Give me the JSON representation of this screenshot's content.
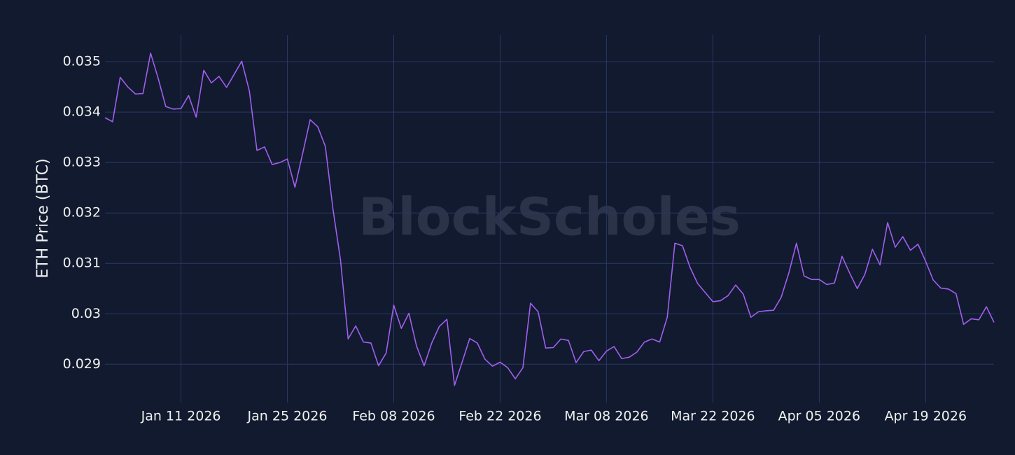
{
  "chart_data": {
    "type": "line",
    "y_label": "ETH Price (BTC)",
    "watermark": "BlockScholes",
    "x": [
      "2026-01-01",
      "2026-01-02",
      "2026-01-03",
      "2026-01-04",
      "2026-01-05",
      "2026-01-06",
      "2026-01-07",
      "2026-01-08",
      "2026-01-09",
      "2026-01-10",
      "2026-01-11",
      "2026-01-12",
      "2026-01-13",
      "2026-01-14",
      "2026-01-15",
      "2026-01-16",
      "2026-01-17",
      "2026-01-18",
      "2026-01-19",
      "2026-01-20",
      "2026-01-21",
      "2026-01-22",
      "2026-01-23",
      "2026-01-24",
      "2026-01-25",
      "2026-01-26",
      "2026-01-27",
      "2026-01-28",
      "2026-01-29",
      "2026-01-30",
      "2026-01-31",
      "2026-02-01",
      "2026-02-02",
      "2026-02-03",
      "2026-02-04",
      "2026-02-05",
      "2026-02-06",
      "2026-02-07",
      "2026-02-08",
      "2026-02-09",
      "2026-02-10",
      "2026-02-11",
      "2026-02-12",
      "2026-02-13",
      "2026-02-14",
      "2026-02-15",
      "2026-02-16",
      "2026-02-17",
      "2026-02-18",
      "2026-02-19",
      "2026-02-20",
      "2026-02-21",
      "2026-02-22",
      "2026-02-23",
      "2026-02-24",
      "2026-02-25",
      "2026-02-26",
      "2026-02-27",
      "2026-02-28",
      "2026-03-01",
      "2026-03-02",
      "2026-03-03",
      "2026-03-04",
      "2026-03-05",
      "2026-03-06",
      "2026-03-07",
      "2026-03-08",
      "2026-03-09",
      "2026-03-10",
      "2026-03-11",
      "2026-03-12",
      "2026-03-13",
      "2026-03-14",
      "2026-03-15",
      "2026-03-16",
      "2026-03-17",
      "2026-03-18",
      "2026-03-19",
      "2026-03-20",
      "2026-03-21",
      "2026-03-22",
      "2026-03-23",
      "2026-03-24",
      "2026-03-25",
      "2026-03-26",
      "2026-03-27",
      "2026-03-28",
      "2026-03-29",
      "2026-03-30",
      "2026-03-31",
      "2026-04-01",
      "2026-04-02",
      "2026-04-03",
      "2026-04-04",
      "2026-04-05",
      "2026-04-06",
      "2026-04-07",
      "2026-04-08",
      "2026-04-09",
      "2026-04-10",
      "2026-04-11",
      "2026-04-12",
      "2026-04-13",
      "2026-04-14",
      "2026-04-15",
      "2026-04-16",
      "2026-04-17",
      "2026-04-18",
      "2026-04-19",
      "2026-04-20",
      "2026-04-21",
      "2026-04-22",
      "2026-04-23",
      "2026-04-24",
      "2026-04-25",
      "2026-04-26",
      "2026-04-27",
      "2026-04-28"
    ],
    "series": [
      {
        "color": "#a15ef0",
        "values": [
          0.03389,
          0.03381,
          0.03469,
          0.0345,
          0.03436,
          0.03437,
          0.03517,
          0.03467,
          0.03411,
          0.03406,
          0.03407,
          0.03433,
          0.0339,
          0.03483,
          0.03458,
          0.03471,
          0.03449,
          0.03475,
          0.03501,
          0.03442,
          0.03324,
          0.03331,
          0.03296,
          0.033,
          0.03307,
          0.03251,
          0.03317,
          0.03385,
          0.03371,
          0.03332,
          0.03208,
          0.03106,
          0.0295,
          0.02976,
          0.02944,
          0.02942,
          0.02897,
          0.02922,
          0.03017,
          0.02971,
          0.03001,
          0.02936,
          0.02897,
          0.02942,
          0.02975,
          0.02989,
          0.02858,
          0.02904,
          0.02951,
          0.02942,
          0.0291,
          0.02896,
          0.02904,
          0.02893,
          0.02871,
          0.02893,
          0.03021,
          0.03004,
          0.02932,
          0.02933,
          0.0295,
          0.02947,
          0.02903,
          0.02925,
          0.02928,
          0.02907,
          0.02926,
          0.02935,
          0.02911,
          0.02914,
          0.02924,
          0.02944,
          0.0295,
          0.02944,
          0.02993,
          0.0314,
          0.03135,
          0.03092,
          0.0306,
          0.03042,
          0.03024,
          0.03026,
          0.03036,
          0.03057,
          0.03039,
          0.02993,
          0.03004,
          0.03006,
          0.03007,
          0.03033,
          0.03081,
          0.0314,
          0.03075,
          0.03068,
          0.03068,
          0.03058,
          0.03061,
          0.03114,
          0.03081,
          0.0305,
          0.03078,
          0.03128,
          0.03097,
          0.03181,
          0.03132,
          0.03153,
          0.03126,
          0.03138,
          0.03104,
          0.03067,
          0.03051,
          0.03049,
          0.0304,
          0.02979,
          0.0299,
          0.02988,
          0.03014,
          0.02983
        ]
      }
    ],
    "xlim": [
      "2026-01-01",
      "2026-04-28"
    ],
    "xticks": [
      {
        "value": "2026-01-11",
        "label": "Jan 11 2026"
      },
      {
        "value": "2026-01-25",
        "label": "Jan 25 2026"
      },
      {
        "value": "2026-02-08",
        "label": "Feb 08 2026"
      },
      {
        "value": "2026-02-22",
        "label": "Feb 22 2026"
      },
      {
        "value": "2026-03-08",
        "label": "Mar 08 2026"
      },
      {
        "value": "2026-03-22",
        "label": "Mar 22 2026"
      },
      {
        "value": "2026-04-05",
        "label": "Apr 05 2026"
      },
      {
        "value": "2026-04-19",
        "label": "Apr 19 2026"
      }
    ],
    "ylim": [
      0.02824,
      0.03553
    ],
    "yticks": [
      0.029,
      0.03,
      0.031,
      0.032,
      0.033,
      0.034,
      0.035
    ],
    "grid": true
  }
}
